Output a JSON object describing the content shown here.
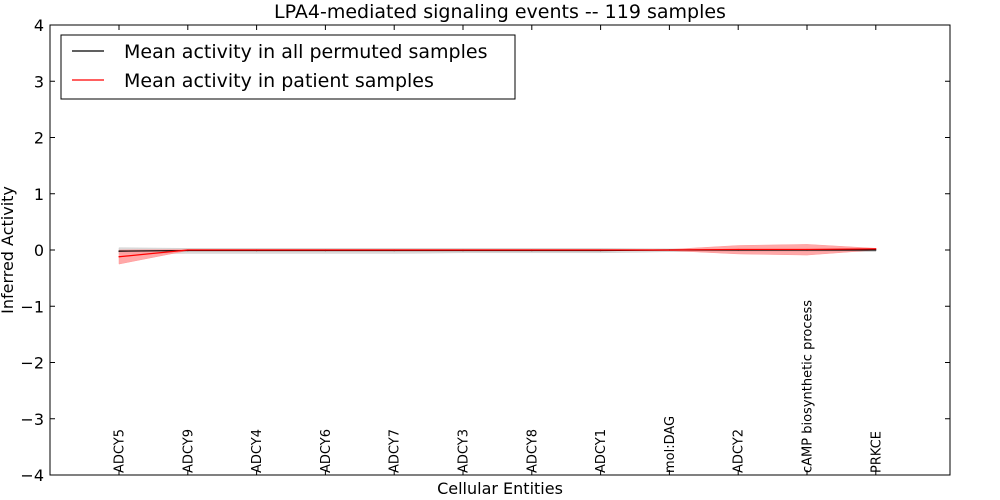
{
  "chart_data": {
    "type": "line",
    "title": "LPA4-mediated signaling events -- 119 samples",
    "xlabel": "Cellular Entities",
    "ylabel": "Inferred Activity",
    "ylim": [
      -4,
      4
    ],
    "yticks": [
      4,
      3,
      2,
      1,
      0,
      -1,
      -2,
      -3,
      -4
    ],
    "ytick_labels": [
      "4",
      "3",
      "2",
      "1",
      "0",
      "−1",
      "−2",
      "−3",
      "−4"
    ],
    "categories": [
      "ADCY5",
      "ADCY9",
      "ADCY4",
      "ADCY6",
      "ADCY7",
      "ADCY3",
      "ADCY8",
      "ADCY1",
      "mol:DAG",
      "ADCY2",
      "cAMP biosynthetic process",
      "PRKCE"
    ],
    "legend_position": "top-left",
    "series": [
      {
        "name": "Mean activity in all permuted samples",
        "color": "#000000",
        "values": [
          -0.02,
          -0.01,
          -0.01,
          -0.01,
          -0.01,
          -0.01,
          -0.01,
          -0.01,
          0.0,
          0.0,
          0.0,
          0.0
        ],
        "band_upper": [
          0.04,
          0.03,
          0.03,
          0.03,
          0.03,
          0.03,
          0.03,
          0.03,
          0.02,
          0.02,
          0.02,
          0.02
        ],
        "band_lower": [
          -0.07,
          -0.06,
          -0.06,
          -0.06,
          -0.06,
          -0.05,
          -0.05,
          -0.05,
          -0.03,
          -0.03,
          -0.03,
          -0.03
        ],
        "band_color": "#cccccc"
      },
      {
        "name": "Mean activity in patient samples",
        "color": "#ff0000",
        "values": [
          -0.12,
          0.0,
          0.0,
          0.0,
          0.0,
          0.0,
          0.0,
          0.0,
          0.0,
          0.01,
          0.01,
          0.02
        ],
        "band_upper": [
          0.0,
          0.01,
          0.01,
          0.01,
          0.01,
          0.01,
          0.01,
          0.01,
          0.01,
          0.08,
          0.1,
          0.03
        ],
        "band_lower": [
          -0.25,
          -0.01,
          -0.01,
          -0.01,
          -0.01,
          -0.01,
          -0.01,
          -0.01,
          -0.01,
          -0.07,
          -0.09,
          0.0
        ],
        "band_color": "#ff9999"
      }
    ]
  }
}
